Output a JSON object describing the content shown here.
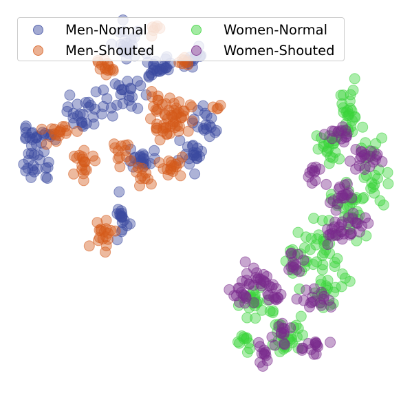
{
  "chart_data": {
    "type": "scatter",
    "title": "",
    "xlabel": "",
    "ylabel": "",
    "axes_visible": false,
    "grid": false,
    "legend_position": "top-left",
    "legend_columns": 2,
    "xlim": [
      0,
      100
    ],
    "ylim": [
      0,
      100
    ],
    "series": [
      {
        "name": "Men-Normal",
        "color": "#3b4ba0",
        "clusters": [
          {
            "cx": 30.5,
            "cy": 88.5,
            "sx": 1.6,
            "sy": 2.2,
            "n": 22
          },
          {
            "cx": 38.0,
            "cy": 83.0,
            "sx": 2.6,
            "sy": 1.6,
            "n": 26
          },
          {
            "cx": 47.5,
            "cy": 86.0,
            "sx": 1.5,
            "sy": 1.2,
            "n": 16
          },
          {
            "cx": 30.0,
            "cy": 76.0,
            "sx": 2.2,
            "sy": 2.0,
            "n": 18
          },
          {
            "cx": 20.0,
            "cy": 71.5,
            "sx": 1.8,
            "sy": 2.2,
            "n": 22
          },
          {
            "cx": 9.5,
            "cy": 66.0,
            "sx": 2.2,
            "sy": 1.4,
            "n": 24
          },
          {
            "cx": 9.0,
            "cy": 58.5,
            "sx": 1.8,
            "sy": 1.6,
            "n": 18
          },
          {
            "cx": 34.5,
            "cy": 60.5,
            "sx": 2.0,
            "sy": 1.6,
            "n": 20
          },
          {
            "cx": 50.5,
            "cy": 68.5,
            "sx": 1.6,
            "sy": 2.4,
            "n": 18
          },
          {
            "cx": 46.0,
            "cy": 60.5,
            "sx": 1.6,
            "sy": 1.6,
            "n": 18
          },
          {
            "cx": 29.5,
            "cy": 45.0,
            "sx": 1.0,
            "sy": 2.6,
            "n": 18
          },
          {
            "cx": 26.0,
            "cy": 75.5,
            "sx": 2.8,
            "sy": 1.6,
            "n": 8
          }
        ]
      },
      {
        "name": "Men-Shouted",
        "color": "#d55a1a",
        "clusters": [
          {
            "cx": 25.0,
            "cy": 83.0,
            "sx": 1.4,
            "sy": 1.2,
            "n": 14
          },
          {
            "cx": 39.0,
            "cy": 72.5,
            "sx": 2.2,
            "sy": 1.8,
            "n": 24
          },
          {
            "cx": 44.0,
            "cy": 71.5,
            "sx": 1.6,
            "sy": 1.6,
            "n": 16
          },
          {
            "cx": 40.5,
            "cy": 67.5,
            "sx": 1.8,
            "sy": 1.4,
            "n": 16
          },
          {
            "cx": 14.5,
            "cy": 67.5,
            "sx": 2.0,
            "sy": 1.4,
            "n": 16
          },
          {
            "cx": 20.5,
            "cy": 59.0,
            "sx": 1.4,
            "sy": 1.6,
            "n": 18
          },
          {
            "cx": 29.5,
            "cy": 62.5,
            "sx": 1.2,
            "sy": 1.2,
            "n": 12
          },
          {
            "cx": 42.0,
            "cy": 58.5,
            "sx": 1.4,
            "sy": 1.4,
            "n": 16
          },
          {
            "cx": 35.0,
            "cy": 56.0,
            "sx": 1.5,
            "sy": 1.2,
            "n": 10
          },
          {
            "cx": 25.0,
            "cy": 42.0,
            "sx": 1.4,
            "sy": 1.8,
            "n": 18
          },
          {
            "cx": 44.5,
            "cy": 85.5,
            "sx": 1.0,
            "sy": 1.0,
            "n": 8
          },
          {
            "cx": 38.0,
            "cy": 92.0,
            "sx": 1.2,
            "sy": 1.2,
            "n": 6
          },
          {
            "cx": 52.5,
            "cy": 73.0,
            "sx": 0.8,
            "sy": 0.8,
            "n": 4
          }
        ]
      },
      {
        "name": "Women-Normal",
        "color": "#3ad43a",
        "clusters": [
          {
            "cx": 84.5,
            "cy": 71.5,
            "sx": 1.6,
            "sy": 3.0,
            "n": 26
          },
          {
            "cx": 80.5,
            "cy": 63.0,
            "sx": 2.0,
            "sy": 2.2,
            "n": 22
          },
          {
            "cx": 90.5,
            "cy": 57.5,
            "sx": 1.6,
            "sy": 4.0,
            "n": 24
          },
          {
            "cx": 84.5,
            "cy": 47.0,
            "sx": 2.2,
            "sy": 3.6,
            "n": 26
          },
          {
            "cx": 78.5,
            "cy": 39.0,
            "sx": 2.4,
            "sy": 3.4,
            "n": 24
          },
          {
            "cx": 80.5,
            "cy": 28.5,
            "sx": 2.4,
            "sy": 2.8,
            "n": 22
          },
          {
            "cx": 62.5,
            "cy": 25.0,
            "sx": 2.6,
            "sy": 2.0,
            "n": 22
          },
          {
            "cx": 70.0,
            "cy": 16.5,
            "sx": 2.2,
            "sy": 2.4,
            "n": 26
          },
          {
            "cx": 60.0,
            "cy": 15.5,
            "sx": 1.4,
            "sy": 1.6,
            "n": 10
          },
          {
            "cx": 73.0,
            "cy": 35.5,
            "sx": 1.8,
            "sy": 3.0,
            "n": 16
          }
        ]
      },
      {
        "name": "Women-Shouted",
        "color": "#7a2a8c",
        "clusters": [
          {
            "cx": 81.0,
            "cy": 67.0,
            "sx": 1.6,
            "sy": 1.2,
            "n": 14
          },
          {
            "cx": 88.5,
            "cy": 60.5,
            "sx": 1.8,
            "sy": 1.6,
            "n": 20
          },
          {
            "cx": 76.0,
            "cy": 56.5,
            "sx": 0.8,
            "sy": 1.4,
            "n": 10
          },
          {
            "cx": 83.0,
            "cy": 51.5,
            "sx": 1.4,
            "sy": 1.6,
            "n": 18
          },
          {
            "cx": 85.5,
            "cy": 44.0,
            "sx": 1.6,
            "sy": 1.6,
            "n": 16
          },
          {
            "cx": 81.5,
            "cy": 42.0,
            "sx": 1.4,
            "sy": 1.4,
            "n": 16
          },
          {
            "cx": 71.0,
            "cy": 35.0,
            "sx": 1.2,
            "sy": 1.4,
            "n": 12
          },
          {
            "cx": 62.0,
            "cy": 30.5,
            "sx": 2.0,
            "sy": 1.6,
            "n": 18
          },
          {
            "cx": 58.5,
            "cy": 26.5,
            "sx": 1.2,
            "sy": 1.6,
            "n": 14
          },
          {
            "cx": 66.5,
            "cy": 27.0,
            "sx": 1.6,
            "sy": 1.6,
            "n": 14
          },
          {
            "cx": 76.0,
            "cy": 25.5,
            "sx": 1.6,
            "sy": 1.6,
            "n": 16
          },
          {
            "cx": 69.0,
            "cy": 18.0,
            "sx": 1.2,
            "sy": 1.4,
            "n": 12
          },
          {
            "cx": 63.5,
            "cy": 12.5,
            "sx": 1.4,
            "sy": 1.4,
            "n": 12
          },
          {
            "cx": 75.5,
            "cy": 13.5,
            "sx": 1.6,
            "sy": 1.4,
            "n": 14
          }
        ]
      }
    ]
  }
}
